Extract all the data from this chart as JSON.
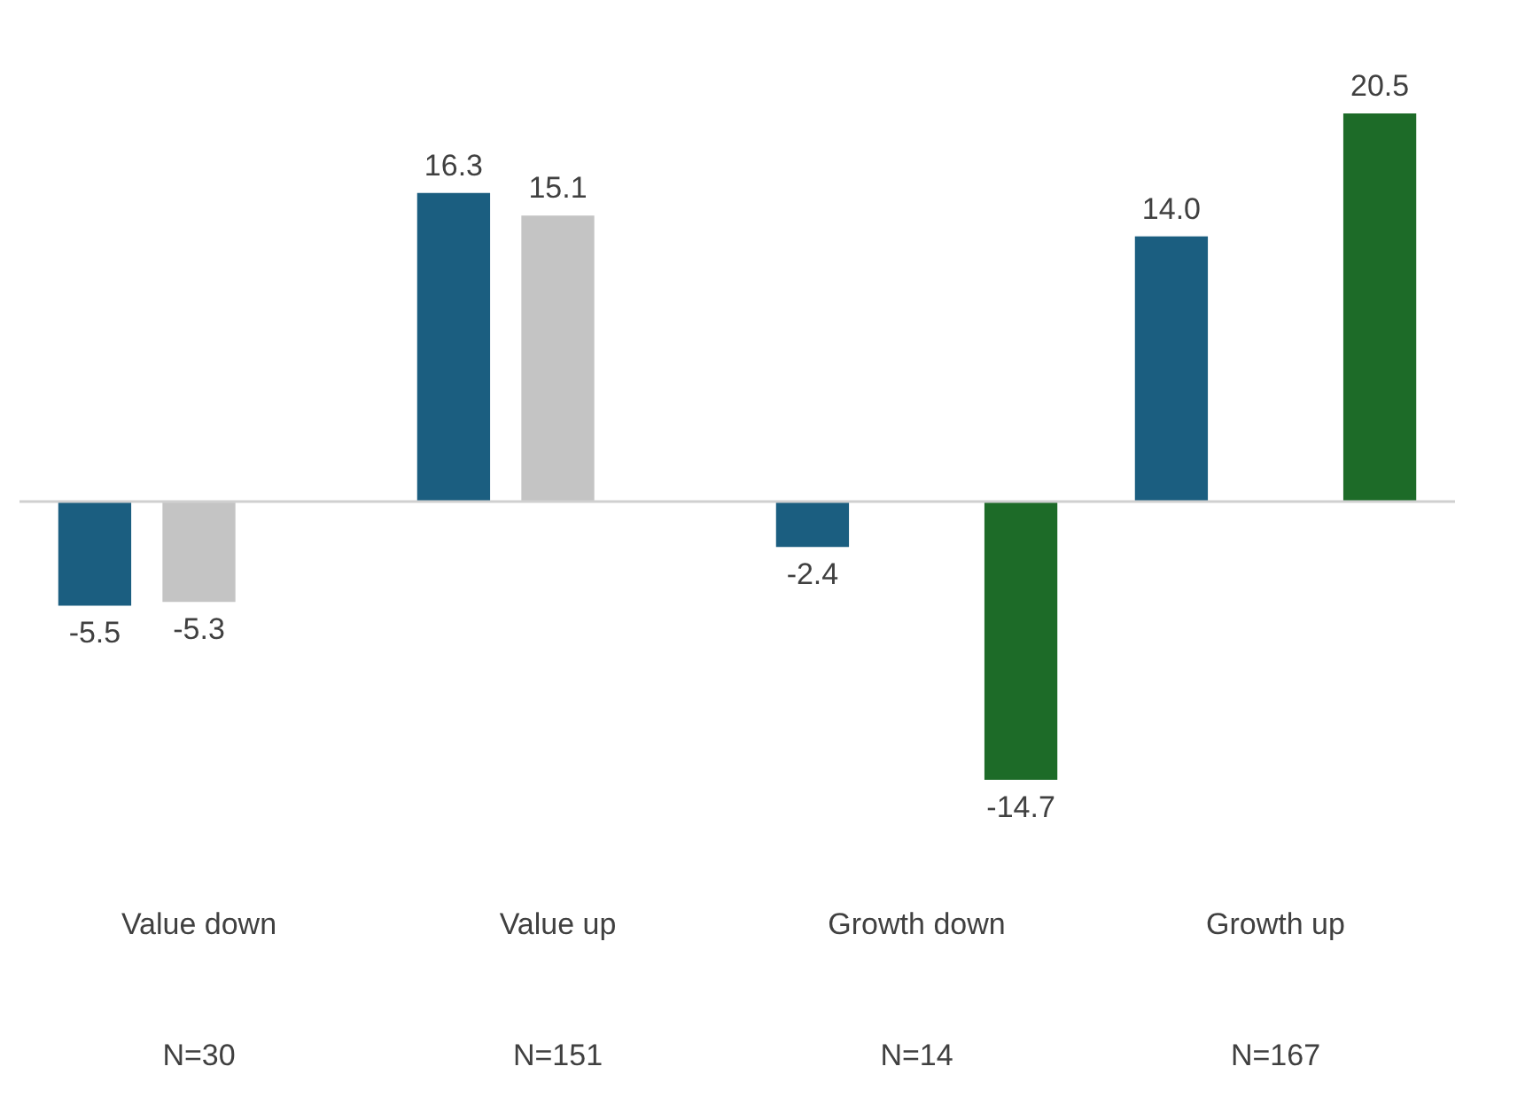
{
  "chart_data": {
    "type": "bar",
    "categories": [
      "Value down",
      "Value up",
      "Growth down",
      "Growth up"
    ],
    "series": [
      {
        "color": "#1b5e80",
        "values": [
          -5.5,
          16.3,
          -2.4,
          14.0
        ],
        "value_labels": [
          "-5.5",
          "16.3",
          "-2.4",
          "14.0"
        ]
      },
      {
        "color": "#c4c4c4",
        "values": [
          -5.3,
          15.1,
          null,
          null
        ],
        "value_labels": [
          "-5.3",
          "15.1",
          null,
          null
        ]
      },
      {
        "color": "#1d6b28",
        "values": [
          null,
          null,
          -14.7,
          20.5
        ],
        "value_labels": [
          null,
          null,
          "-14.7",
          "20.5"
        ]
      }
    ],
    "legend": false,
    "annotations": [
      "N=30",
      "N=151",
      "N=14",
      "N=167"
    ]
  }
}
